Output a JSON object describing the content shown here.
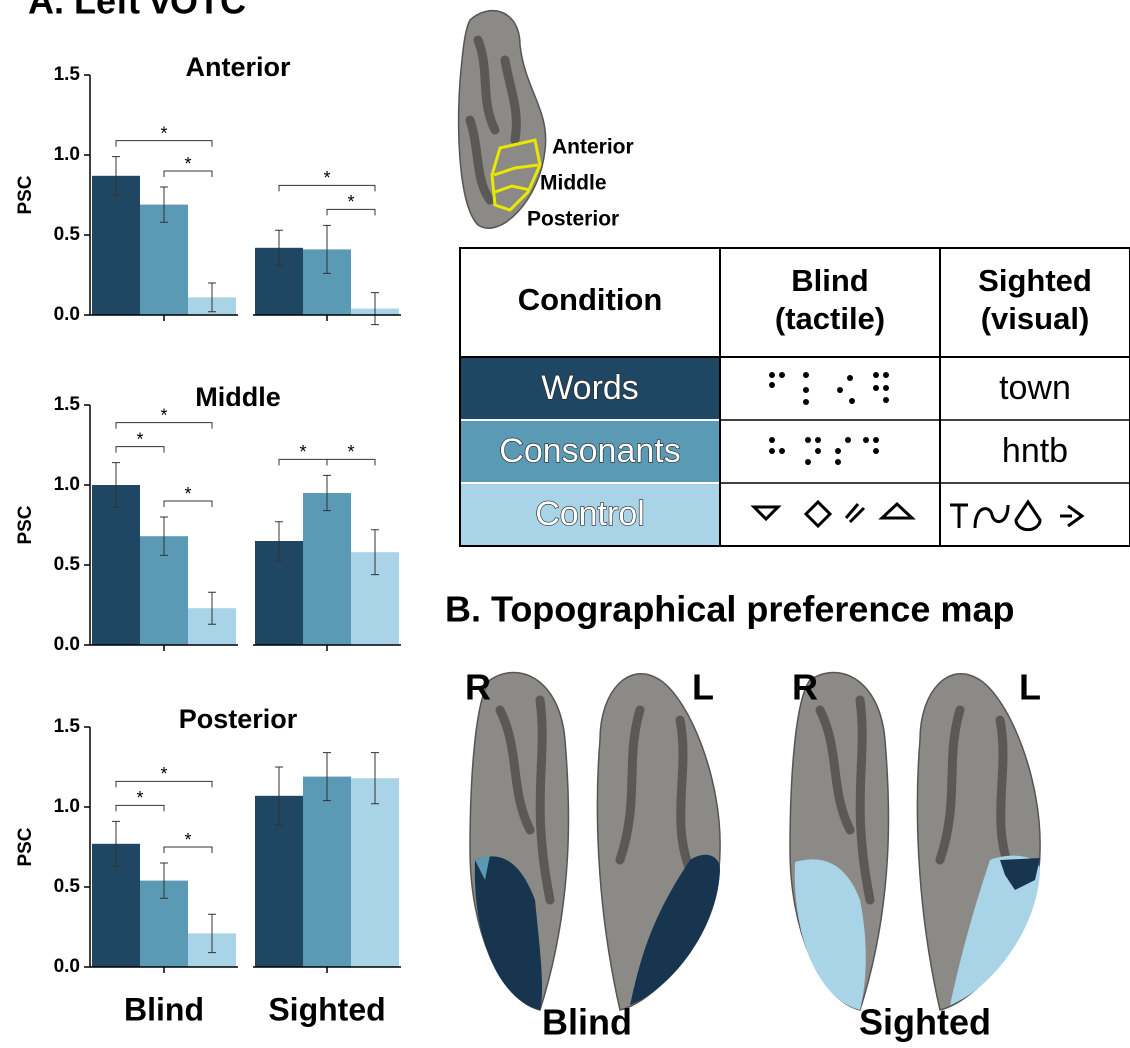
{
  "panel_a_title": "A. Left vOTC",
  "panel_b_title": "B. Topographical preference map",
  "roi_labels": [
    "Anterior",
    "Middle",
    "Posterior"
  ],
  "chart_data": [
    {
      "type": "bar",
      "title": "Anterior",
      "ylabel": "PSC",
      "ylim": [
        0,
        1.5
      ],
      "yticks": [
        {
          "value": 0,
          "label": "0.0"
        },
        {
          "value": 0.5,
          "label": "0.5"
        },
        {
          "value": 1,
          "label": "1.0"
        },
        {
          "value": 1.5,
          "label": "1.5"
        }
      ],
      "series": [
        {
          "color": "#1f4663",
          "values": [
            0.87,
            0.42
          ],
          "errors": [
            0.12,
            0.11
          ]
        },
        {
          "color": "#5a9ab5",
          "values": [
            0.69,
            0.41
          ],
          "errors": [
            0.11,
            0.15
          ]
        },
        {
          "color": "#a9d3e6",
          "values": [
            0.11,
            0.04
          ],
          "errors": [
            0.09,
            0.1
          ]
        }
      ],
      "brackets": [
        {
          "group": 0,
          "from": 0,
          "to": 2,
          "label": "*"
        },
        {
          "group": 0,
          "from": 1,
          "to": 2,
          "label": "*"
        },
        {
          "group": 1,
          "from": 0,
          "to": 2,
          "label": "*"
        },
        {
          "group": 1,
          "from": 1,
          "to": 2,
          "label": "*"
        }
      ]
    },
    {
      "type": "bar",
      "title": "Middle",
      "ylabel": "PSC",
      "ylim": [
        0,
        1.5
      ],
      "yticks": [
        {
          "value": 0,
          "label": "0.0"
        },
        {
          "value": 0.5,
          "label": "0.5"
        },
        {
          "value": 1,
          "label": "1.0"
        },
        {
          "value": 1.5,
          "label": "1.5"
        }
      ],
      "series": [
        {
          "color": "#1f4663",
          "values": [
            1.0,
            0.65
          ],
          "errors": [
            0.14,
            0.12
          ]
        },
        {
          "color": "#5a9ab5",
          "values": [
            0.68,
            0.95
          ],
          "errors": [
            0.12,
            0.11
          ]
        },
        {
          "color": "#a9d3e6",
          "values": [
            0.23,
            0.58
          ],
          "errors": [
            0.1,
            0.14
          ]
        }
      ],
      "brackets": [
        {
          "group": 0,
          "from": 0,
          "to": 1,
          "label": "*"
        },
        {
          "group": 0,
          "from": 0,
          "to": 2,
          "label": "*"
        },
        {
          "group": 0,
          "from": 1,
          "to": 2,
          "label": "*"
        },
        {
          "group": 1,
          "from": 0,
          "to": 1,
          "label": "*"
        },
        {
          "group": 1,
          "from": 1,
          "to": 2,
          "label": "*"
        }
      ]
    },
    {
      "type": "bar",
      "title": "Posterior",
      "ylabel": "PSC",
      "categories": [
        "Blind",
        "Sighted"
      ],
      "ylim": [
        0,
        1.5
      ],
      "yticks": [
        {
          "value": 0,
          "label": "0.0"
        },
        {
          "value": 0.5,
          "label": "0.5"
        },
        {
          "value": 1,
          "label": "1.0"
        },
        {
          "value": 1.5,
          "label": "1.5"
        }
      ],
      "series": [
        {
          "color": "#1f4663",
          "values": [
            0.77,
            1.07
          ],
          "errors": [
            0.14,
            0.18
          ]
        },
        {
          "color": "#5a9ab5",
          "values": [
            0.54,
            1.19
          ],
          "errors": [
            0.11,
            0.15
          ]
        },
        {
          "color": "#a9d3e6",
          "values": [
            0.21,
            1.18
          ],
          "errors": [
            0.12,
            0.16
          ]
        }
      ],
      "brackets": [
        {
          "group": 0,
          "from": 0,
          "to": 1,
          "label": "*"
        },
        {
          "group": 0,
          "from": 0,
          "to": 2,
          "label": "*"
        },
        {
          "group": 0,
          "from": 1,
          "to": 2,
          "label": "*"
        }
      ]
    }
  ],
  "table": {
    "header": [
      [
        "Condition"
      ],
      [
        "Blind",
        "(tactile)"
      ],
      [
        "Sighted",
        "(visual)"
      ]
    ],
    "rows": [
      {
        "label": "Words",
        "sighted": "town",
        "color": "#1f4663"
      },
      {
        "label": "Consonants",
        "sighted": "hntb",
        "color": "#5a9ab5"
      },
      {
        "label": "Control",
        "color": "#a9d3e6"
      }
    ]
  },
  "map_labels": {
    "blind": {
      "right": "R",
      "left": "L",
      "group": "Blind"
    },
    "sighted": {
      "right": "R",
      "left": "L",
      "group": "Sighted"
    }
  }
}
